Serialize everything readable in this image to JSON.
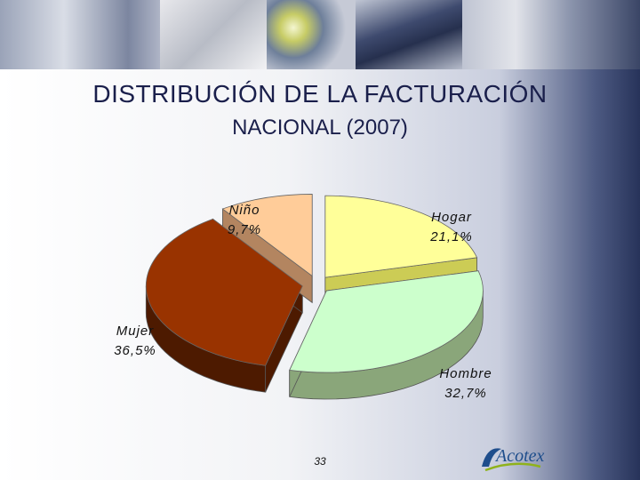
{
  "slide": {
    "title_line1": "DISTRIBUCIÓN DE LA FACTURACIÓN",
    "title_line2": "NACIONAL (2007)",
    "page_number": "33",
    "logo_text": "Acotex"
  },
  "chart_data": {
    "type": "pie",
    "title": "",
    "slices": [
      {
        "name": "Hogar",
        "value": 21.1,
        "label": "21,1%",
        "color": "#ffff99",
        "side": "#cccc55"
      },
      {
        "name": "Hombre",
        "value": 32.7,
        "label": "32,7%",
        "color": "#ccffcc",
        "side": "#8aa67a"
      },
      {
        "name": "Mujer",
        "value": 36.5,
        "label": "36,5%",
        "color": "#993300",
        "side": "#4d1a00"
      },
      {
        "name": "Niño",
        "value": 9.7,
        "label": "9,7%",
        "color": "#ffcc99",
        "side": "#b38560"
      }
    ],
    "start_angle_deg": 90,
    "direction": "clockwise",
    "style": "3d-exploded"
  },
  "colors": {
    "title": "#1a1f4b",
    "background_dark": "#27335a"
  }
}
